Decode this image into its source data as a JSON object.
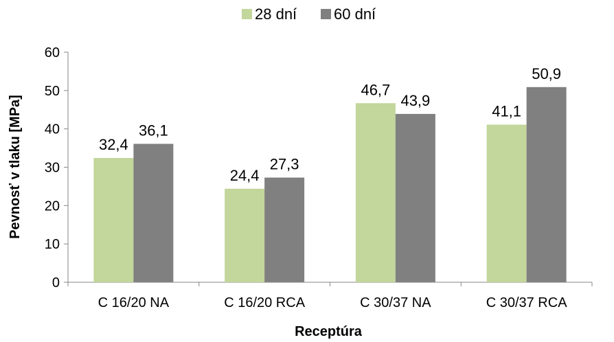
{
  "chart_data": {
    "type": "bar",
    "xlabel": "Receptúra",
    "ylabel": "Pevnosť v tlaku [MPa]",
    "ylim": [
      0,
      60
    ],
    "yticks": [
      "0",
      "10",
      "20",
      "30",
      "40",
      "50",
      "60"
    ],
    "categories": [
      "C 16/20 NA",
      "C 16/20 RCA",
      "C 30/37 NA",
      "C 30/37 RCA"
    ],
    "series": [
      {
        "name": "28 dní",
        "color": "#c3d69b",
        "values": [
          32.4,
          24.4,
          46.7,
          41.1
        ],
        "labels": [
          "32,4",
          "24,4",
          "46,7",
          "41,1"
        ]
      },
      {
        "name": "60 dní",
        "color": "#808080",
        "values": [
          36.1,
          27.3,
          43.9,
          50.9
        ],
        "labels": [
          "36,1",
          "27,3",
          "43,9",
          "50,9"
        ]
      }
    ],
    "legend_position": "top",
    "grid": false
  }
}
